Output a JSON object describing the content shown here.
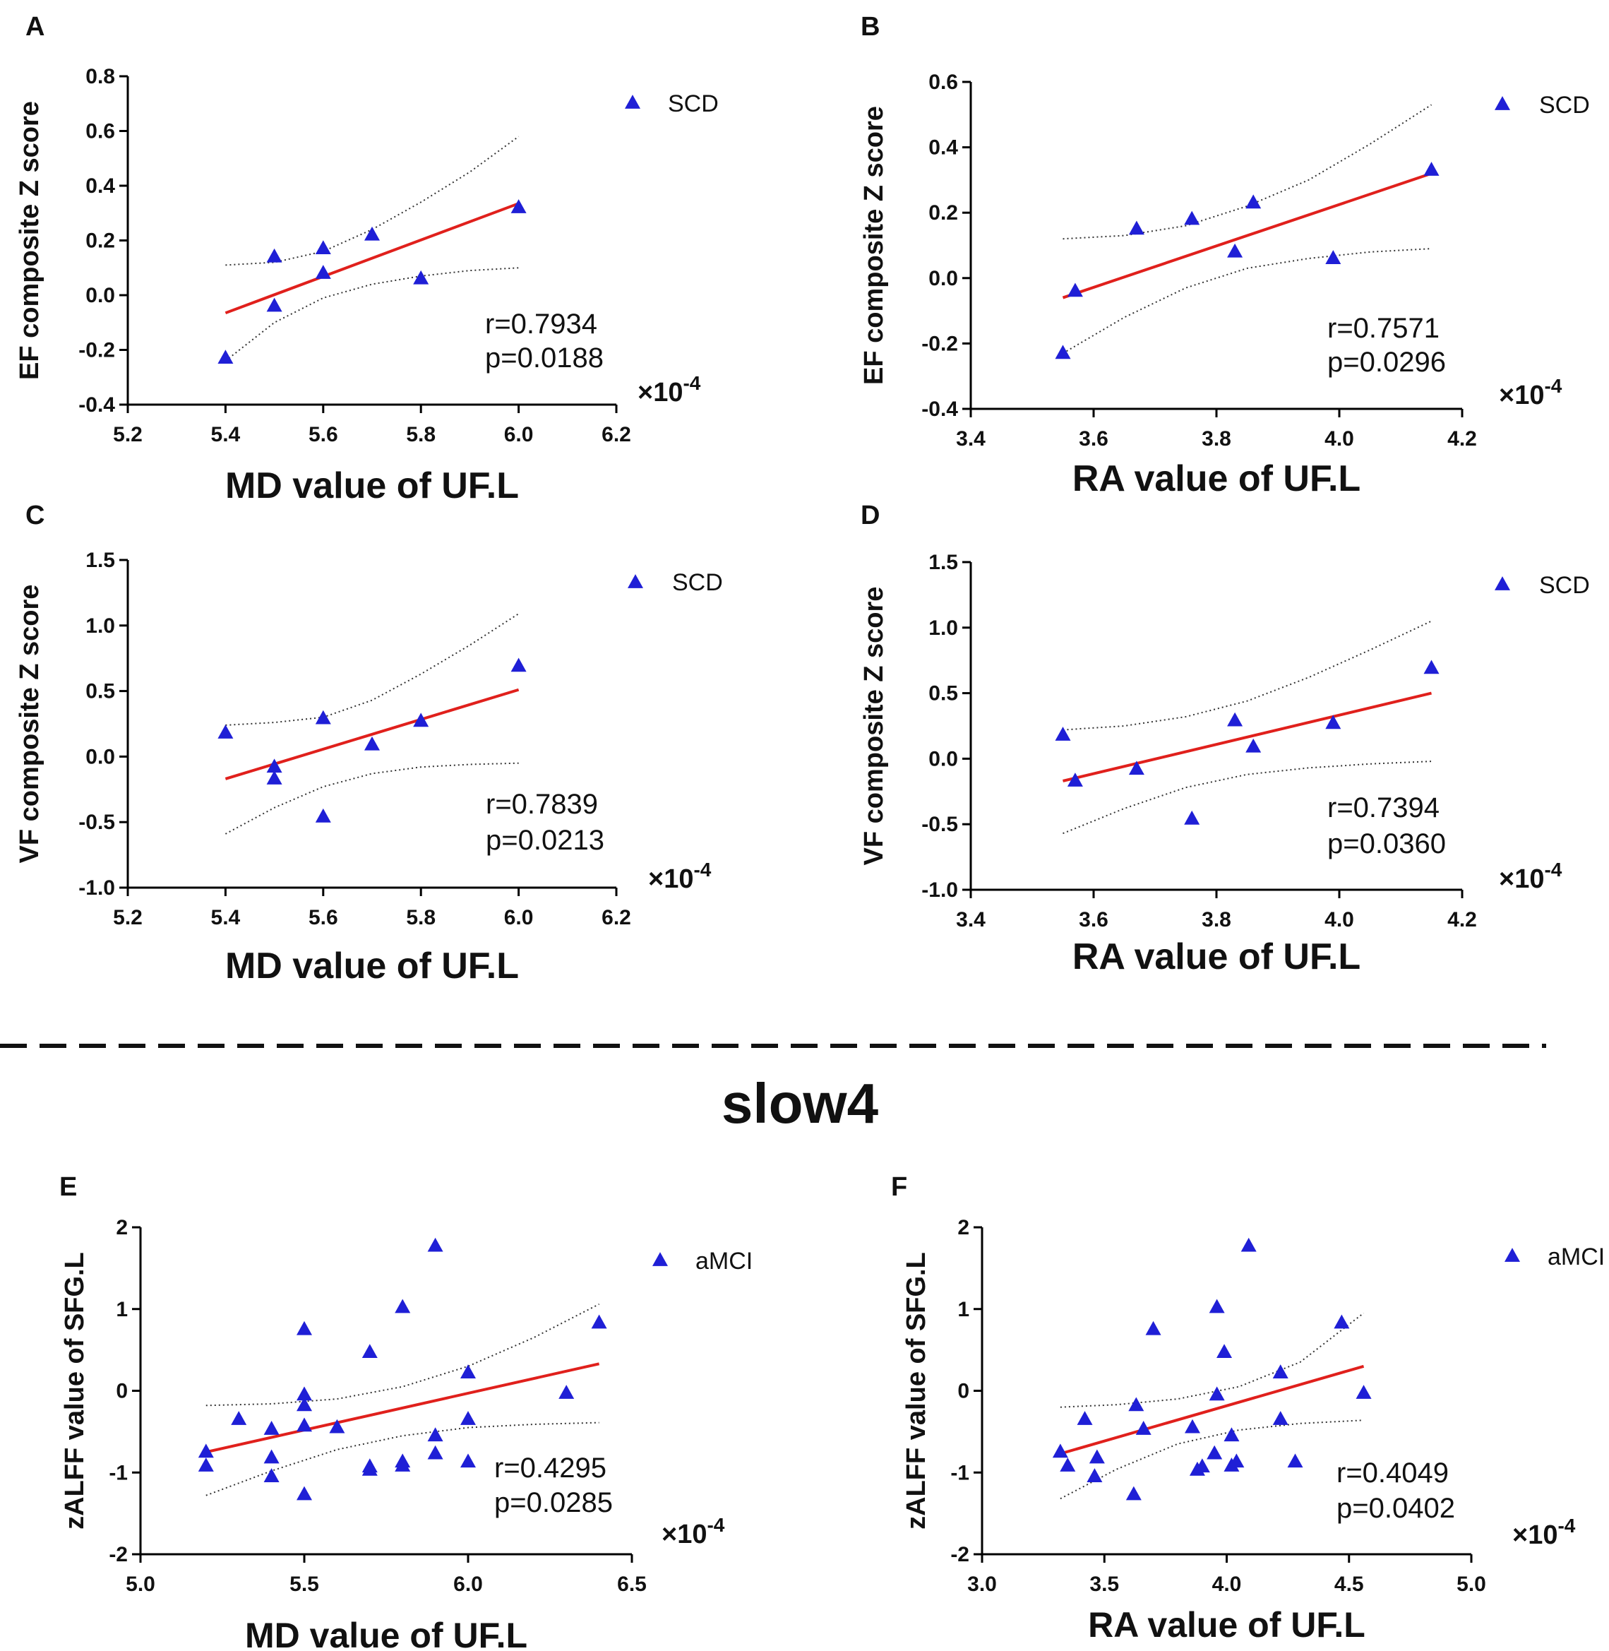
{
  "section_label": "slow4",
  "colors": {
    "point": "#1f1fd6",
    "fit": "#e0201c",
    "band": "#333333",
    "axis": "#000000"
  },
  "chart_data": [
    {
      "id": "A",
      "type": "scatter",
      "letter": "A",
      "ylabel": "EF composite Z score",
      "xlabel": "MD value of UF.L",
      "legend": "SCD",
      "scale": "×10",
      "scale_exp": "-4",
      "stat_r": "r=0.7934",
      "stat_p": "p=0.0188",
      "xlim": [
        5.2,
        6.2
      ],
      "ylim": [
        -0.4,
        0.8
      ],
      "xticks": [
        "5.2",
        "5.4",
        "5.6",
        "5.8",
        "6.0",
        "6.2"
      ],
      "yticks": [
        "-0.4",
        "-0.2",
        "0.0",
        "0.2",
        "0.4",
        "0.6",
        "0.8"
      ],
      "points": [
        [
          5.4,
          -0.23
        ],
        [
          5.5,
          -0.04
        ],
        [
          5.5,
          0.14
        ],
        [
          5.6,
          0.17
        ],
        [
          5.6,
          0.08
        ],
        [
          5.7,
          0.22
        ],
        [
          5.8,
          0.06
        ],
        [
          6.0,
          0.32
        ]
      ],
      "fit": [
        [
          5.4,
          -0.065
        ],
        [
          6.0,
          0.335
        ]
      ],
      "ci_upper": [
        [
          5.4,
          0.11
        ],
        [
          5.5,
          0.12
        ],
        [
          5.6,
          0.16
        ],
        [
          5.7,
          0.24
        ],
        [
          5.8,
          0.34
        ],
        [
          5.9,
          0.45
        ],
        [
          6.0,
          0.58
        ]
      ],
      "ci_lower": [
        [
          5.4,
          -0.24
        ],
        [
          5.5,
          -0.1
        ],
        [
          5.6,
          -0.01
        ],
        [
          5.7,
          0.04
        ],
        [
          5.8,
          0.07
        ],
        [
          5.9,
          0.09
        ],
        [
          6.0,
          0.1
        ]
      ]
    },
    {
      "id": "B",
      "type": "scatter",
      "letter": "B",
      "ylabel": "EF composite Z score",
      "xlabel": "RA value of UF.L",
      "legend": "SCD",
      "scale": "×10",
      "scale_exp": "-4",
      "stat_r": "r=0.7571",
      "stat_p": "p=0.0296",
      "xlim": [
        3.4,
        4.2
      ],
      "ylim": [
        -0.4,
        0.6
      ],
      "xticks": [
        "3.4",
        "3.6",
        "3.8",
        "4.0",
        "4.2"
      ],
      "yticks": [
        "-0.4",
        "-0.2",
        "0.0",
        "0.2",
        "0.4",
        "0.6"
      ],
      "points": [
        [
          3.55,
          -0.23
        ],
        [
          3.57,
          -0.04
        ],
        [
          3.67,
          0.15
        ],
        [
          3.76,
          0.18
        ],
        [
          3.83,
          0.08
        ],
        [
          3.86,
          0.23
        ],
        [
          3.99,
          0.06
        ],
        [
          4.15,
          0.33
        ]
      ],
      "fit": [
        [
          3.55,
          -0.06
        ],
        [
          4.15,
          0.32
        ]
      ],
      "ci_upper": [
        [
          3.55,
          0.12
        ],
        [
          3.65,
          0.13
        ],
        [
          3.75,
          0.16
        ],
        [
          3.85,
          0.22
        ],
        [
          3.95,
          0.3
        ],
        [
          4.05,
          0.41
        ],
        [
          4.15,
          0.53
        ]
      ],
      "ci_lower": [
        [
          3.55,
          -0.23
        ],
        [
          3.65,
          -0.12
        ],
        [
          3.75,
          -0.03
        ],
        [
          3.85,
          0.03
        ],
        [
          3.95,
          0.06
        ],
        [
          4.05,
          0.08
        ],
        [
          4.15,
          0.09
        ]
      ]
    },
    {
      "id": "C",
      "type": "scatter",
      "letter": "C",
      "ylabel": "VF composite Z score",
      "xlabel": "MD value of UF.L",
      "legend": "SCD",
      "scale": "×10",
      "scale_exp": "-4",
      "stat_r": "r=0.7839",
      "stat_p": "p=0.0213",
      "xlim": [
        5.2,
        6.2
      ],
      "ylim": [
        -1.0,
        1.5
      ],
      "xticks": [
        "5.2",
        "5.4",
        "5.6",
        "5.8",
        "6.0",
        "6.2"
      ],
      "yticks": [
        "-1.0",
        "-0.5",
        "0.0",
        "0.5",
        "1.0",
        "1.5"
      ],
      "points": [
        [
          5.4,
          0.18
        ],
        [
          5.5,
          -0.08
        ],
        [
          5.5,
          -0.17
        ],
        [
          5.6,
          0.29
        ],
        [
          5.6,
          -0.46
        ],
        [
          5.7,
          0.09
        ],
        [
          5.8,
          0.27
        ],
        [
          6.0,
          0.69
        ]
      ],
      "fit": [
        [
          5.4,
          -0.17
        ],
        [
          6.0,
          0.51
        ]
      ],
      "ci_upper": [
        [
          5.4,
          0.24
        ],
        [
          5.5,
          0.26
        ],
        [
          5.6,
          0.3
        ],
        [
          5.7,
          0.43
        ],
        [
          5.8,
          0.63
        ],
        [
          5.9,
          0.85
        ],
        [
          6.0,
          1.09
        ]
      ],
      "ci_lower": [
        [
          5.4,
          -0.59
        ],
        [
          5.5,
          -0.39
        ],
        [
          5.6,
          -0.23
        ],
        [
          5.7,
          -0.13
        ],
        [
          5.8,
          -0.08
        ],
        [
          5.9,
          -0.06
        ],
        [
          6.0,
          -0.05
        ]
      ]
    },
    {
      "id": "D",
      "type": "scatter",
      "letter": "D",
      "ylabel": "VF composite Z score",
      "xlabel": "RA value of UF.L",
      "legend": "SCD",
      "scale": "×10",
      "scale_exp": "-4",
      "stat_r": "r=0.7394",
      "stat_p": "p=0.0360",
      "xlim": [
        3.4,
        4.2
      ],
      "ylim": [
        -1.0,
        1.5
      ],
      "xticks": [
        "3.4",
        "3.6",
        "3.8",
        "4.0",
        "4.2"
      ],
      "yticks": [
        "-1.0",
        "-0.5",
        "0.0",
        "0.5",
        "1.0",
        "1.5"
      ],
      "points": [
        [
          3.55,
          0.18
        ],
        [
          3.57,
          -0.17
        ],
        [
          3.67,
          -0.08
        ],
        [
          3.76,
          -0.46
        ],
        [
          3.83,
          0.29
        ],
        [
          3.86,
          0.09
        ],
        [
          3.99,
          0.27
        ],
        [
          4.15,
          0.69
        ]
      ],
      "fit": [
        [
          3.55,
          -0.17
        ],
        [
          4.15,
          0.5
        ]
      ],
      "ci_upper": [
        [
          3.55,
          0.22
        ],
        [
          3.65,
          0.25
        ],
        [
          3.75,
          0.32
        ],
        [
          3.85,
          0.44
        ],
        [
          3.95,
          0.62
        ],
        [
          4.05,
          0.83
        ],
        [
          4.15,
          1.05
        ]
      ],
      "ci_lower": [
        [
          3.55,
          -0.57
        ],
        [
          3.65,
          -0.38
        ],
        [
          3.75,
          -0.22
        ],
        [
          3.85,
          -0.12
        ],
        [
          3.95,
          -0.07
        ],
        [
          4.05,
          -0.04
        ],
        [
          4.15,
          -0.02
        ]
      ]
    },
    {
      "id": "E",
      "type": "scatter",
      "letter": "E",
      "ylabel": "zALFF value of SFG.L",
      "xlabel": "MD value of UF.L",
      "legend": "aMCI",
      "scale": "×10",
      "scale_exp": "-4",
      "stat_r": "r=0.4295",
      "stat_p": "p=0.0285",
      "xlim": [
        5.0,
        6.5
      ],
      "ylim": [
        -2,
        2
      ],
      "xticks": [
        "5.0",
        "5.5",
        "6.0",
        "6.5"
      ],
      "yticks": [
        "-2",
        "-1",
        "0",
        "1",
        "2"
      ],
      "points": [
        [
          5.2,
          -0.75
        ],
        [
          5.2,
          -0.92
        ],
        [
          5.3,
          -0.35
        ],
        [
          5.4,
          -0.47
        ],
        [
          5.4,
          -0.82
        ],
        [
          5.4,
          -1.05
        ],
        [
          5.5,
          0.75
        ],
        [
          5.5,
          -0.05
        ],
        [
          5.5,
          -0.18
        ],
        [
          5.5,
          -0.43
        ],
        [
          5.5,
          -1.27
        ],
        [
          5.6,
          -0.45
        ],
        [
          5.7,
          0.47
        ],
        [
          5.7,
          -0.93
        ],
        [
          5.7,
          -0.97
        ],
        [
          5.8,
          1.02
        ],
        [
          5.8,
          -0.87
        ],
        [
          5.8,
          -0.92
        ],
        [
          5.9,
          1.77
        ],
        [
          5.9,
          -0.55
        ],
        [
          5.9,
          -0.77
        ],
        [
          6.0,
          0.22
        ],
        [
          6.0,
          -0.35
        ],
        [
          6.0,
          -0.87
        ],
        [
          6.3,
          -0.03
        ],
        [
          6.4,
          0.83
        ]
      ],
      "fit": [
        [
          5.2,
          -0.75
        ],
        [
          6.4,
          0.33
        ]
      ],
      "ci_upper": [
        [
          5.2,
          -0.18
        ],
        [
          5.4,
          -0.16
        ],
        [
          5.6,
          -0.1
        ],
        [
          5.8,
          0.05
        ],
        [
          6.0,
          0.3
        ],
        [
          6.2,
          0.65
        ],
        [
          6.4,
          1.06
        ]
      ],
      "ci_lower": [
        [
          5.2,
          -1.28
        ],
        [
          5.4,
          -0.98
        ],
        [
          5.6,
          -0.72
        ],
        [
          5.8,
          -0.55
        ],
        [
          6.0,
          -0.45
        ],
        [
          6.2,
          -0.41
        ],
        [
          6.4,
          -0.39
        ]
      ]
    },
    {
      "id": "F",
      "type": "scatter",
      "letter": "F",
      "ylabel": "zALFF value of SFG.L",
      "xlabel": "RA value of UF.L",
      "legend": "aMCI",
      "scale": "×10",
      "scale_exp": "-4",
      "stat_r": "r=0.4049",
      "stat_p": "p=0.0402",
      "xlim": [
        3.0,
        5.0
      ],
      "ylim": [
        -2,
        2
      ],
      "xticks": [
        "3.0",
        "3.5",
        "4.0",
        "4.5",
        "5.0"
      ],
      "yticks": [
        "-2",
        "-1",
        "0",
        "1",
        "2"
      ],
      "points": [
        [
          3.32,
          -0.75
        ],
        [
          3.35,
          -0.92
        ],
        [
          3.42,
          -0.35
        ],
        [
          3.46,
          -1.05
        ],
        [
          3.47,
          -0.82
        ],
        [
          3.62,
          -1.27
        ],
        [
          3.63,
          -0.18
        ],
        [
          3.66,
          -0.47
        ],
        [
          3.7,
          0.75
        ],
        [
          3.86,
          -0.45
        ],
        [
          3.88,
          -0.97
        ],
        [
          3.9,
          -0.93
        ],
        [
          3.95,
          -0.77
        ],
        [
          3.96,
          1.02
        ],
        [
          3.96,
          -0.05
        ],
        [
          3.99,
          0.47
        ],
        [
          4.02,
          -0.55
        ],
        [
          4.02,
          -0.92
        ],
        [
          4.04,
          -0.87
        ],
        [
          4.09,
          1.77
        ],
        [
          4.22,
          0.22
        ],
        [
          4.22,
          -0.35
        ],
        [
          4.28,
          -0.87
        ],
        [
          4.47,
          0.83
        ],
        [
          4.56,
          -0.03
        ]
      ],
      "fit": [
        [
          3.32,
          -0.77
        ],
        [
          4.56,
          0.3
        ]
      ],
      "ci_upper": [
        [
          3.32,
          -0.2
        ],
        [
          3.55,
          -0.17
        ],
        [
          3.8,
          -0.1
        ],
        [
          4.05,
          0.05
        ],
        [
          4.3,
          0.35
        ],
        [
          4.56,
          0.95
        ]
      ],
      "ci_lower": [
        [
          3.32,
          -1.32
        ],
        [
          3.55,
          -0.96
        ],
        [
          3.8,
          -0.65
        ],
        [
          4.05,
          -0.48
        ],
        [
          4.3,
          -0.4
        ],
        [
          4.56,
          -0.36
        ]
      ]
    }
  ]
}
